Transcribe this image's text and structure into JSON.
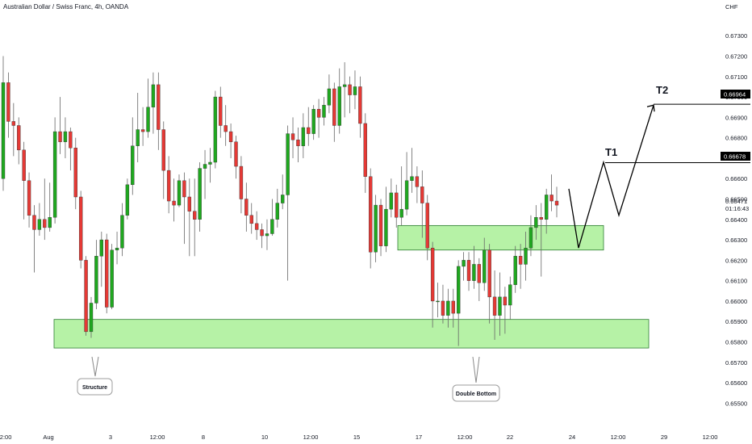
{
  "header": {
    "symbol_title": "Australian Dollar / Swiss Franc, 4h, OANDA",
    "currency": "CHF"
  },
  "price_axis": {
    "labels": [
      "0.67300",
      "0.67200",
      "0.67100",
      "0.67000",
      "0.66900",
      "0.66800",
      "0.66700",
      "0.66600",
      "0.66500",
      "0.66400",
      "0.66300",
      "0.66200",
      "0.66100",
      "0.66000",
      "0.65900",
      "0.65800",
      "0.65700",
      "0.65600",
      "0.65500"
    ],
    "current_price": "0.66471",
    "countdown": "01:16:43"
  },
  "time_axis": {
    "labels": [
      "12:00",
      "Aug",
      "3",
      "12:00",
      "8",
      "10",
      "12:00",
      "15",
      "17",
      "12:00",
      "22",
      "24",
      "12:00",
      "29",
      "12:00"
    ]
  },
  "annotations": {
    "structure_label": "Structure",
    "double_bottom_label": "Double Bottom",
    "t1_label": "T1",
    "t2_label": "T2",
    "t1_price": "0.66678",
    "t2_price": "0.66964"
  },
  "colors": {
    "bull": "#1fa81f",
    "bear": "#e53935",
    "zone_fill": "#b6f2a6",
    "zone_stroke": "#2e7d32",
    "price_tag": "#000000"
  },
  "chart_data": {
    "type": "candlestick",
    "symbol": "AUDCHF",
    "timeframe": "4h",
    "y_range": [
      0.6545,
      0.6738
    ],
    "support_zone": [
      0.6577,
      0.6591
    ],
    "resistance_zone": [
      0.6625,
      0.6637
    ],
    "targets": [
      0.66678,
      0.66964
    ],
    "projected_path": [
      0.6655,
      0.6626,
      0.6668,
      0.6642,
      0.6696
    ],
    "candles": [
      [
        0.666,
        0.6707,
        0.672,
        0.6654
      ],
      [
        0.6707,
        0.6688,
        0.6712,
        0.668
      ],
      [
        0.6688,
        0.6686,
        0.6697,
        0.6671
      ],
      [
        0.6686,
        0.6674,
        0.669,
        0.6667
      ],
      [
        0.6674,
        0.6659,
        0.6678,
        0.664
      ],
      [
        0.6659,
        0.6642,
        0.6663,
        0.6636
      ],
      [
        0.6642,
        0.6635,
        0.6647,
        0.6614
      ],
      [
        0.6635,
        0.664,
        0.6648,
        0.6632
      ],
      [
        0.664,
        0.6636,
        0.666,
        0.663
      ],
      [
        0.6636,
        0.6641,
        0.6658,
        0.6634
      ],
      [
        0.6641,
        0.6683,
        0.669,
        0.6638
      ],
      [
        0.6683,
        0.6678,
        0.67,
        0.6672
      ],
      [
        0.6678,
        0.6683,
        0.669,
        0.667
      ],
      [
        0.6683,
        0.6675,
        0.6685,
        0.6664
      ],
      [
        0.6675,
        0.6651,
        0.668,
        0.6645
      ],
      [
        0.6651,
        0.662,
        0.6654,
        0.6616
      ],
      [
        0.662,
        0.6585,
        0.6622,
        0.6583
      ],
      [
        0.6585,
        0.6599,
        0.6602,
        0.6582
      ],
      [
        0.6599,
        0.6622,
        0.663,
        0.6596
      ],
      [
        0.6622,
        0.663,
        0.6634,
        0.6607
      ],
      [
        0.663,
        0.6597,
        0.6633,
        0.6594
      ],
      [
        0.6597,
        0.6625,
        0.6628,
        0.6596
      ],
      [
        0.6625,
        0.6626,
        0.6634,
        0.6618
      ],
      [
        0.6626,
        0.6642,
        0.6648,
        0.6622
      ],
      [
        0.6642,
        0.6657,
        0.666,
        0.664
      ],
      [
        0.6657,
        0.6676,
        0.669,
        0.6652
      ],
      [
        0.6676,
        0.6684,
        0.6702,
        0.6668
      ],
      [
        0.6684,
        0.6683,
        0.6695,
        0.6676
      ],
      [
        0.6683,
        0.6695,
        0.6709,
        0.668
      ],
      [
        0.6695,
        0.6706,
        0.6712,
        0.6682
      ],
      [
        0.6706,
        0.6684,
        0.6712,
        0.6674
      ],
      [
        0.6684,
        0.6664,
        0.6688,
        0.665
      ],
      [
        0.6664,
        0.6649,
        0.6671,
        0.6643
      ],
      [
        0.6649,
        0.6647,
        0.666,
        0.6639
      ],
      [
        0.6647,
        0.6659,
        0.6662,
        0.6646
      ],
      [
        0.6659,
        0.6651,
        0.6663,
        0.6628
      ],
      [
        0.6651,
        0.6644,
        0.666,
        0.6622
      ],
      [
        0.6644,
        0.664,
        0.666,
        0.6622
      ],
      [
        0.664,
        0.6665,
        0.6668,
        0.6634
      ],
      [
        0.6665,
        0.6667,
        0.6674,
        0.665
      ],
      [
        0.6667,
        0.6668,
        0.6675,
        0.6658
      ],
      [
        0.6668,
        0.67,
        0.6703,
        0.6665
      ],
      [
        0.67,
        0.6686,
        0.6705,
        0.668
      ],
      [
        0.6686,
        0.6683,
        0.6696,
        0.6676
      ],
      [
        0.6683,
        0.6678,
        0.6687,
        0.667
      ],
      [
        0.6678,
        0.6666,
        0.6681,
        0.666
      ],
      [
        0.6666,
        0.665,
        0.6671,
        0.6643
      ],
      [
        0.665,
        0.6642,
        0.6658,
        0.6634
      ],
      [
        0.6642,
        0.6638,
        0.6648,
        0.6633
      ],
      [
        0.6638,
        0.6635,
        0.6644,
        0.663
      ],
      [
        0.6635,
        0.6632,
        0.6638,
        0.6626
      ],
      [
        0.6632,
        0.6633,
        0.664,
        0.6625
      ],
      [
        0.6633,
        0.664,
        0.665,
        0.6632
      ],
      [
        0.664,
        0.6648,
        0.6655,
        0.6636
      ],
      [
        0.6648,
        0.6652,
        0.6662,
        0.6645
      ],
      [
        0.6652,
        0.6682,
        0.6686,
        0.661
      ],
      [
        0.6682,
        0.6679,
        0.669,
        0.667
      ],
      [
        0.6679,
        0.6676,
        0.6685,
        0.6668
      ],
      [
        0.6676,
        0.6685,
        0.6692,
        0.667
      ],
      [
        0.6685,
        0.6682,
        0.6695,
        0.6676
      ],
      [
        0.6682,
        0.6694,
        0.6696,
        0.6679
      ],
      [
        0.6694,
        0.669,
        0.6699,
        0.668
      ],
      [
        0.669,
        0.6696,
        0.67,
        0.6686
      ],
      [
        0.6696,
        0.6704,
        0.6711,
        0.6692
      ],
      [
        0.6704,
        0.6686,
        0.6707,
        0.6678
      ],
      [
        0.6686,
        0.6705,
        0.6714,
        0.6682
      ],
      [
        0.6705,
        0.6706,
        0.6717,
        0.669
      ],
      [
        0.6706,
        0.6701,
        0.671,
        0.6692
      ],
      [
        0.6701,
        0.6705,
        0.6713,
        0.6694
      ],
      [
        0.6705,
        0.6687,
        0.671,
        0.668
      ],
      [
        0.6687,
        0.6661,
        0.6692,
        0.6653
      ],
      [
        0.6661,
        0.6624,
        0.6665,
        0.6616
      ],
      [
        0.6624,
        0.6647,
        0.6652,
        0.6619
      ],
      [
        0.6647,
        0.6627,
        0.665,
        0.6622
      ],
      [
        0.6627,
        0.6645,
        0.6656,
        0.6624
      ],
      [
        0.6645,
        0.6653,
        0.666,
        0.6641
      ],
      [
        0.6653,
        0.6641,
        0.6657,
        0.6636
      ],
      [
        0.6641,
        0.6645,
        0.6666,
        0.6637
      ],
      [
        0.6645,
        0.6659,
        0.6673,
        0.6642
      ],
      [
        0.6659,
        0.6661,
        0.6675,
        0.6653
      ],
      [
        0.6661,
        0.6656,
        0.6666,
        0.6648
      ],
      [
        0.6656,
        0.6648,
        0.6664,
        0.6631
      ],
      [
        0.6648,
        0.6626,
        0.6652,
        0.662
      ],
      [
        0.6626,
        0.66,
        0.6629,
        0.6587
      ],
      [
        0.66,
        0.66,
        0.6609,
        0.6592
      ],
      [
        0.66,
        0.6593,
        0.6608,
        0.6589
      ],
      [
        0.6593,
        0.66,
        0.6606,
        0.6587
      ],
      [
        0.66,
        0.6594,
        0.6606,
        0.6587
      ],
      [
        0.6594,
        0.6617,
        0.662,
        0.6578
      ],
      [
        0.6617,
        0.662,
        0.6624,
        0.661
      ],
      [
        0.662,
        0.661,
        0.6624,
        0.6605
      ],
      [
        0.661,
        0.6618,
        0.6627,
        0.6606
      ],
      [
        0.6618,
        0.6609,
        0.6621,
        0.66
      ],
      [
        0.6609,
        0.6625,
        0.6631,
        0.6605
      ],
      [
        0.6625,
        0.6602,
        0.6628,
        0.6589
      ],
      [
        0.6602,
        0.6593,
        0.6615,
        0.6581
      ],
      [
        0.6593,
        0.6602,
        0.6614,
        0.6583
      ],
      [
        0.6602,
        0.6598,
        0.6607,
        0.6584
      ],
      [
        0.6598,
        0.6608,
        0.6612,
        0.6591
      ],
      [
        0.6608,
        0.6622,
        0.6627,
        0.6604
      ],
      [
        0.6622,
        0.6618,
        0.6628,
        0.6606
      ],
      [
        0.6618,
        0.6626,
        0.6634,
        0.661
      ],
      [
        0.6626,
        0.6636,
        0.6642,
        0.6622
      ],
      [
        0.6636,
        0.6641,
        0.6647,
        0.663
      ],
      [
        0.6641,
        0.664,
        0.6648,
        0.6612
      ],
      [
        0.664,
        0.6652,
        0.6655,
        0.6633
      ],
      [
        0.6652,
        0.6649,
        0.6662,
        0.6644
      ],
      [
        0.6649,
        0.6647,
        0.6656,
        0.6641
      ]
    ]
  }
}
